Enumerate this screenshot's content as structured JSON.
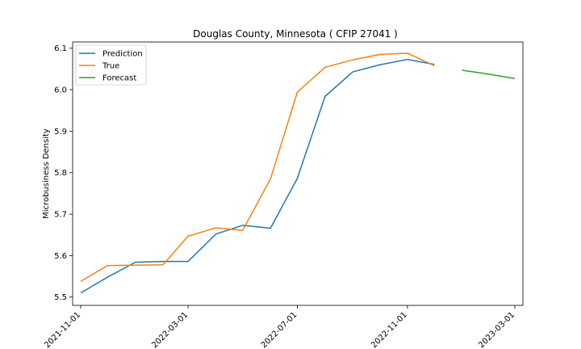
{
  "chart_data": {
    "type": "line",
    "title": "Douglas County, Minnesota ( CFIP 27041 )",
    "xlabel": "",
    "ylabel": "Microbusiness Density",
    "ylim": [
      5.48,
      6.115
    ],
    "xlim": [
      "2021-10-23",
      "2023-03-10"
    ],
    "x_ticks": [
      "2021-11-01",
      "2022-03-01",
      "2022-07-01",
      "2022-11-01",
      "2023-03-01"
    ],
    "y_ticks": [
      5.5,
      5.6,
      5.7,
      5.8,
      5.9,
      6.0,
      6.1
    ],
    "legend_position": "upper left",
    "grid": false,
    "series": [
      {
        "name": "Prediction",
        "color": "#1f77b4",
        "x": [
          "2021-11-01",
          "2021-12-01",
          "2022-01-01",
          "2022-02-01",
          "2022-03-01",
          "2022-04-01",
          "2022-05-01",
          "2022-06-01",
          "2022-07-01",
          "2022-08-01",
          "2022-09-01",
          "2022-10-01",
          "2022-11-01",
          "2022-12-01"
        ],
        "values": [
          5.51,
          5.548,
          5.584,
          5.586,
          5.586,
          5.652,
          5.673,
          5.666,
          5.786,
          5.984,
          6.043,
          6.06,
          6.073,
          6.061
        ]
      },
      {
        "name": "True",
        "color": "#ff7f0e",
        "x": [
          "2021-11-01",
          "2021-12-01",
          "2022-01-01",
          "2022-02-01",
          "2022-03-01",
          "2022-04-01",
          "2022-05-01",
          "2022-06-01",
          "2022-07-01",
          "2022-08-01",
          "2022-09-01",
          "2022-10-01",
          "2022-11-01",
          "2022-12-01"
        ],
        "values": [
          5.538,
          5.576,
          5.577,
          5.578,
          5.647,
          5.667,
          5.661,
          5.785,
          5.994,
          6.054,
          6.072,
          6.085,
          6.088,
          6.058
        ]
      },
      {
        "name": "Forecast",
        "color": "#2ca02c",
        "x": [
          "2023-01-01",
          "2023-02-01",
          "2023-03-01"
        ],
        "values": [
          6.047,
          6.037,
          6.027
        ]
      }
    ]
  }
}
